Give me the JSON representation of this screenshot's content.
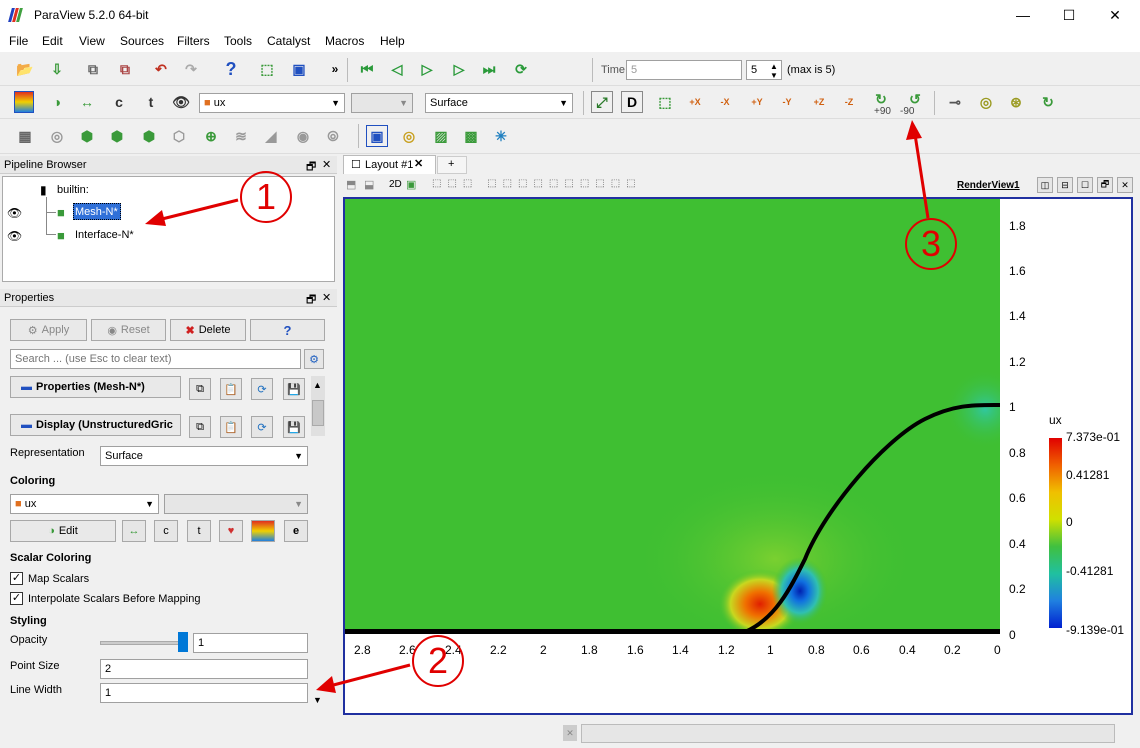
{
  "window": {
    "title": "ParaView 5.2.0 64-bit",
    "minimize": "—",
    "maximize": "☐",
    "close": "✕"
  },
  "menu": [
    "File",
    "Edit",
    "View",
    "Sources",
    "Filters",
    "Tools",
    "Catalyst",
    "Macros",
    "Help"
  ],
  "toolbar": {
    "time_label": "Time:",
    "time_value": "5",
    "timestep_value": "5",
    "max_label": "(max is 5)",
    "array_combo": "ux",
    "component_combo": "",
    "representation_combo": "Surface",
    "rotate_plus": "+90",
    "rotate_minus": "-90",
    "axis_labels": [
      "+X",
      "-X",
      "+Y",
      "-Y",
      "+Z",
      "-Z"
    ]
  },
  "pipeline": {
    "header": "Pipeline Browser",
    "root": "builtin:",
    "items": [
      "Mesh-N*",
      "Interface-N*"
    ]
  },
  "properties": {
    "header": "Properties",
    "apply": "Apply",
    "reset": "Reset",
    "delete": "Delete",
    "help": "?",
    "search_placeholder": "Search ... (use Esc to clear text)",
    "section_properties": "Properties (Mesh-N*)",
    "section_display": "Display (UnstructuredGric",
    "representation_label": "Representation",
    "representation_value": "Surface",
    "coloring_label": "Coloring",
    "coloring_array": "ux",
    "edit_label": "Edit",
    "scalar_coloring_label": "Scalar Coloring",
    "map_scalars": "Map Scalars",
    "interpolate_scalars": "Interpolate Scalars Before Mapping",
    "styling_label": "Styling",
    "opacity_label": "Opacity",
    "opacity_value": "1",
    "opacity_fraction": 1,
    "point_size_label": "Point Size",
    "point_size_value": "2",
    "line_width_label": "Line Width",
    "line_width_value": "1"
  },
  "layout": {
    "tab": "Layout #1",
    "plus": "+",
    "mode_2d": "2D",
    "render_view": "RenderView1"
  },
  "plot": {
    "x_ticks": [
      "2.8",
      "2.6",
      "2.4",
      "2.2",
      "2",
      "1.8",
      "1.6",
      "1.4",
      "1.2",
      "1",
      "0.8",
      "0.6",
      "0.4",
      "0.2",
      "0"
    ],
    "y_ticks": [
      "1.8",
      "1.6",
      "1.4",
      "1.2",
      "1",
      "0.8",
      "0.6",
      "0.4",
      "0.2",
      "0"
    ],
    "colorbar_title": "ux",
    "colorbar_labels": [
      "7.373e-01",
      "0.41281",
      "0",
      "-0.41281",
      "-9.139e-01"
    ]
  },
  "annotations": [
    "1",
    "2",
    "3"
  ],
  "colors": {
    "accent": "#2030a0",
    "annotation": "#e00000",
    "field_green": "#3fbf32"
  }
}
